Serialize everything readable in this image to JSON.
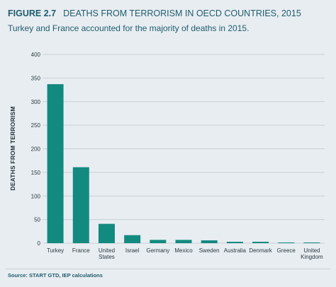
{
  "figure": {
    "label": "FIGURE 2.7",
    "title": "DEATHS FROM TERRORISM IN OECD COUNTRIES, 2015",
    "subtitle": "Turkey and France accounted for the majority of deaths in 2015.",
    "source": "Source: START GTD, IEP calculations"
  },
  "colors": {
    "bar": "#138a80",
    "text": "#1e5c6e",
    "grid": "#c7cfd4",
    "background": "#e8edf1"
  },
  "chart_data": {
    "type": "bar",
    "title": "DEATHS FROM TERRORISM IN OECD COUNTRIES, 2015",
    "xlabel": "",
    "ylabel": "DEATHS FROM TERRORISM",
    "ylim": [
      0,
      400
    ],
    "yticks": [
      0,
      50,
      100,
      150,
      200,
      250,
      300,
      350,
      400
    ],
    "grid": true,
    "categories": [
      "Turkey",
      "France",
      "United States",
      "Israel",
      "Germany",
      "Mexico",
      "Sweden",
      "Australia",
      "Denmark",
      "Greece",
      "United Kingdom"
    ],
    "category_label_lines": [
      [
        "Turkey"
      ],
      [
        "France"
      ],
      [
        "United",
        "States"
      ],
      [
        "Israel"
      ],
      [
        "Germany"
      ],
      [
        "Mexico"
      ],
      [
        "Sweden"
      ],
      [
        "Australia"
      ],
      [
        "Denmark"
      ],
      [
        "Greece"
      ],
      [
        "United",
        "Kingdom"
      ]
    ],
    "values": [
      337,
      161,
      41,
      17,
      7,
      7,
      6,
      3,
      3,
      1,
      1
    ]
  }
}
